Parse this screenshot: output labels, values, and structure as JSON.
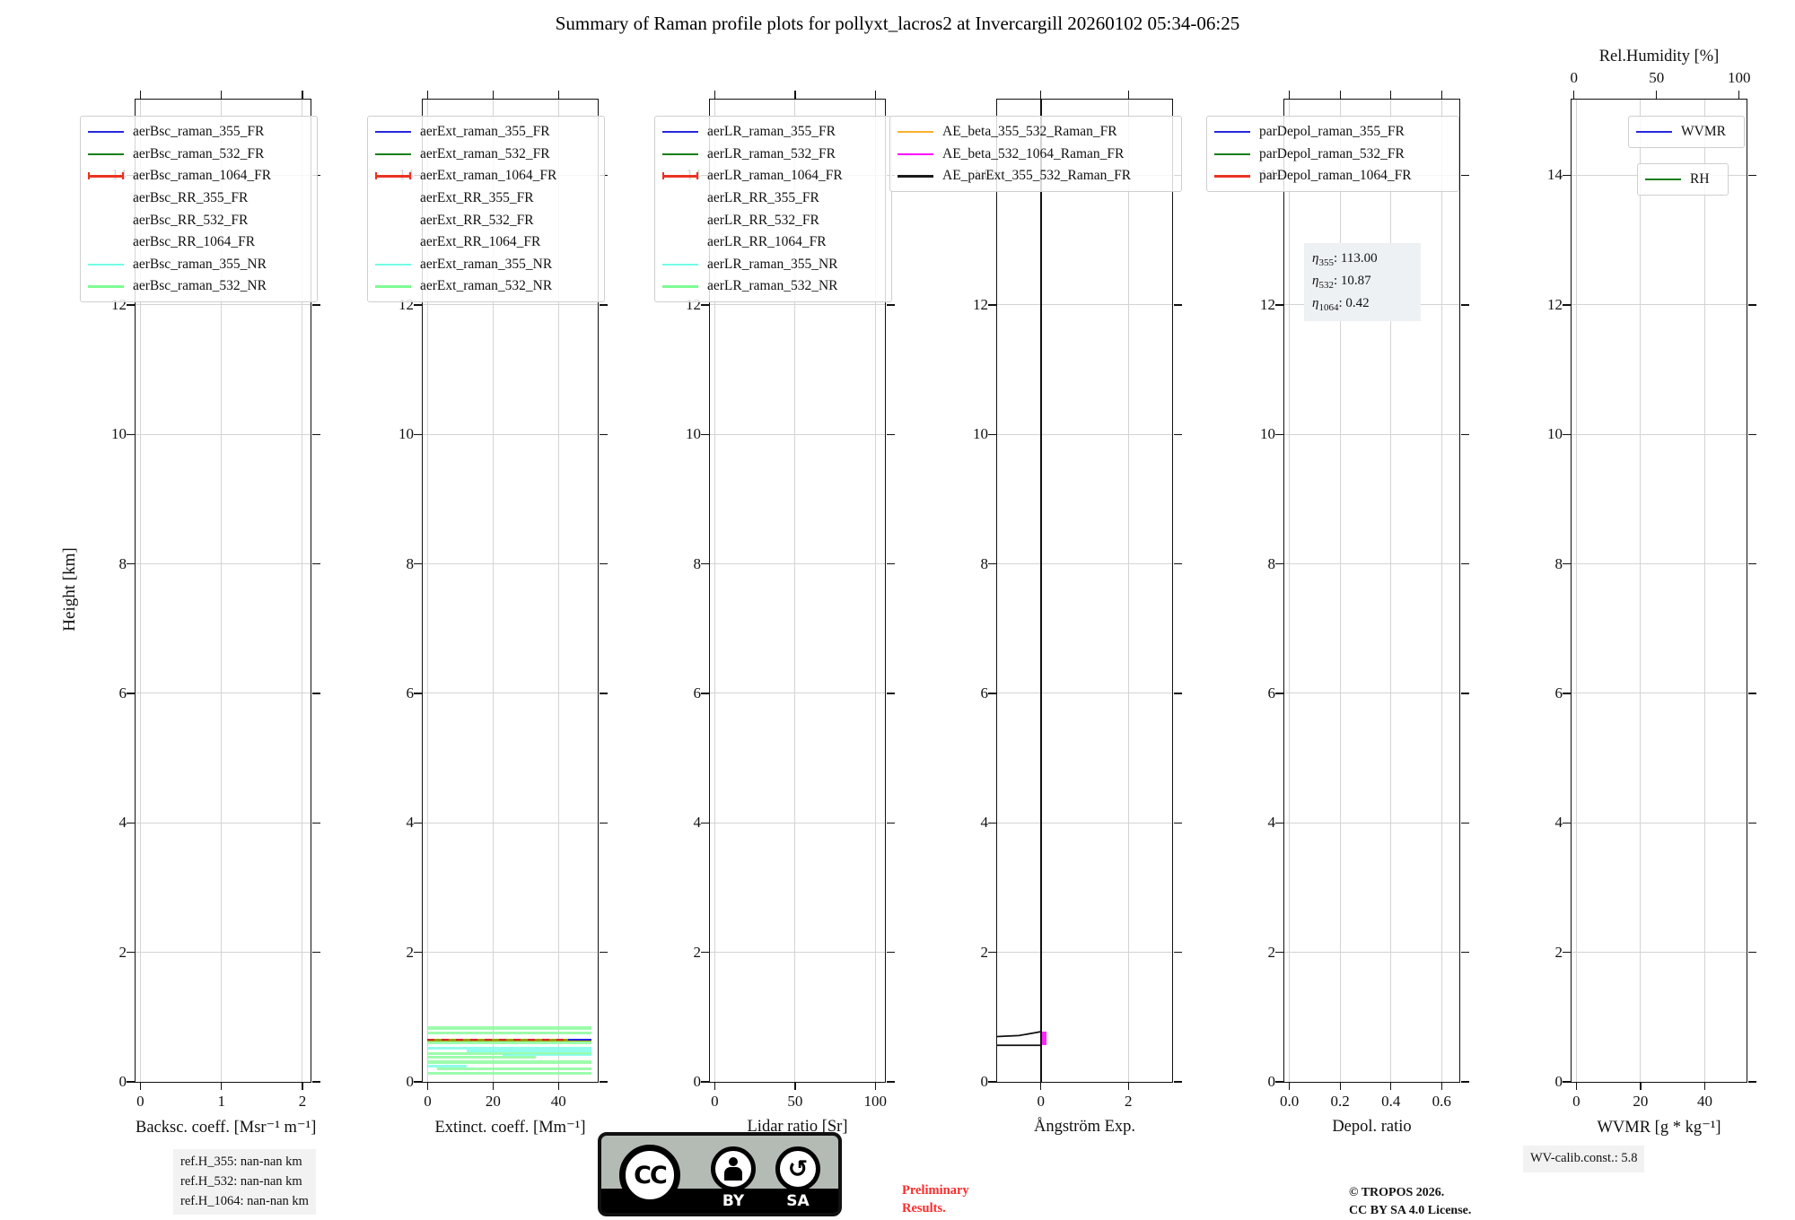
{
  "header": {
    "title": "Summary of Raman profile plots for pollyxt_lacros2 at Invercargill 20260102 05:34-06:25"
  },
  "ylabel": "Height [km]",
  "chart_data": [
    {
      "id": "backsc",
      "type": "line",
      "xlabel": "Backsc. coeff. [Msr⁻¹ m⁻¹]",
      "ylabel": "Height [km]",
      "xlim": [
        -0.06,
        2.1
      ],
      "ylim": [
        0,
        15.17
      ],
      "xticks": [
        0,
        1,
        2
      ],
      "xtick_labels": [
        "0",
        "1",
        "2"
      ],
      "yticks": [
        0,
        2,
        4,
        6,
        8,
        10,
        12,
        14
      ],
      "ytick_labels": [
        "0",
        "2",
        "4",
        "6",
        "8",
        "10",
        "12",
        "14"
      ],
      "grid": true,
      "legend": [
        {
          "label": "aerBsc_raman_355_FR",
          "color": "#2727dd",
          "style": "solid"
        },
        {
          "label": "aerBsc_raman_532_FR",
          "color": "#157f15",
          "style": "solid"
        },
        {
          "label": "aerBsc_raman_1064_FR",
          "color": "#ea3323",
          "style": "solid",
          "handle": "errorbar"
        },
        {
          "label": "aerBsc_RR_355_FR",
          "color": "#800f80",
          "style": "dashed"
        },
        {
          "label": "aerBsc_RR_532_FR",
          "color": "#9c9c00",
          "style": "dashed"
        },
        {
          "label": "aerBsc_RR_1064_FR",
          "color": "#ffa184",
          "style": "dashed"
        },
        {
          "label": "aerBsc_raman_355_NR",
          "color": "#72fce4",
          "style": "solid"
        },
        {
          "label": "aerBsc_raman_532_NR",
          "color": "#7dfc93",
          "style": "solid"
        }
      ],
      "series": []
    },
    {
      "id": "extinct",
      "type": "line",
      "xlabel": "Extinct. coeff. [Mm⁻¹]",
      "xlim": [
        -1.5,
        52
      ],
      "ylim": [
        0,
        15.17
      ],
      "xticks": [
        0,
        20,
        40
      ],
      "xtick_labels": [
        "0",
        "20",
        "40"
      ],
      "yticks": [
        0,
        2,
        4,
        6,
        8,
        10,
        12,
        14
      ],
      "ytick_labels": [
        "0",
        "2",
        "4",
        "6",
        "8",
        "10",
        "12",
        "14"
      ],
      "grid": true,
      "legend": [
        {
          "label": "aerExt_raman_355_FR",
          "color": "#2727dd",
          "style": "solid"
        },
        {
          "label": "aerExt_raman_532_FR",
          "color": "#157f15",
          "style": "solid"
        },
        {
          "label": "aerExt_raman_1064_FR",
          "color": "#ea3323",
          "style": "solid",
          "handle": "errorbar"
        },
        {
          "label": "aerExt_RR_355_FR",
          "color": "#800f80",
          "style": "dashed"
        },
        {
          "label": "aerExt_RR_532_FR",
          "color": "#9c9c00",
          "style": "dashed"
        },
        {
          "label": "aerExt_RR_1064_FR",
          "color": "#ffa184",
          "style": "dashed"
        },
        {
          "label": "aerExt_raman_355_NR",
          "color": "#72fce4",
          "style": "solid"
        },
        {
          "label": "aerExt_raman_532_NR",
          "color": "#7dfc93",
          "style": "solid"
        }
      ],
      "series": [
        {
          "type": "band",
          "x0": 0,
          "x1": 50,
          "y0": 0.8,
          "y1": 0.86,
          "color": "#8cfc9e"
        },
        {
          "type": "band",
          "x0": 0,
          "x1": 50,
          "y0": 0.73,
          "y1": 0.775,
          "color": "#8cfc9e"
        },
        {
          "type": "hline",
          "y": 0.65,
          "x0": 0,
          "x1": 50,
          "color": "#9c9c00",
          "lw": 3,
          "overlay": "#d42a2a"
        },
        {
          "type": "hline",
          "y": 0.655,
          "x0": 43,
          "x1": 50,
          "color": "#2727dd",
          "lw": 2
        },
        {
          "type": "band",
          "x0": 0,
          "x1": 50,
          "y0": 0.585,
          "y1": 0.625,
          "color": "#8cfc9e"
        },
        {
          "type": "band",
          "x0": 0,
          "x1": 50,
          "y0": 0.5,
          "y1": 0.545,
          "color": "#7efce8"
        },
        {
          "type": "band",
          "x0": 12,
          "x1": 50,
          "y0": 0.46,
          "y1": 0.5,
          "color": "#7efce8"
        },
        {
          "type": "band",
          "x0": 0,
          "x1": 50,
          "y0": 0.42,
          "y1": 0.455,
          "color": "#8cfc9e"
        },
        {
          "type": "band",
          "x0": 23,
          "x1": 50,
          "y0": 0.4,
          "y1": 0.435,
          "color": "#7efce8"
        },
        {
          "type": "band",
          "x0": 0,
          "x1": 33,
          "y0": 0.365,
          "y1": 0.395,
          "color": "#8cfc9e"
        },
        {
          "type": "band",
          "x0": 0,
          "x1": 50,
          "y0": 0.28,
          "y1": 0.33,
          "color": "#8cfc9e"
        },
        {
          "type": "band",
          "x0": 0,
          "x1": 12,
          "y0": 0.225,
          "y1": 0.26,
          "color": "#7efce8"
        },
        {
          "type": "band",
          "x0": 3,
          "x1": 50,
          "y0": 0.175,
          "y1": 0.215,
          "color": "#8cfc9e"
        },
        {
          "type": "band",
          "x0": 0,
          "x1": 50,
          "y0": 0.115,
          "y1": 0.15,
          "color": "#8cfc9e"
        }
      ]
    },
    {
      "id": "lidar-ratio",
      "type": "line",
      "xlabel": "Lidar ratio [Sr]",
      "xlim": [
        -3,
        106
      ],
      "ylim": [
        0,
        15.17
      ],
      "xticks": [
        0,
        50,
        100
      ],
      "xtick_labels": [
        "0",
        "50",
        "100"
      ],
      "yticks": [
        0,
        2,
        4,
        6,
        8,
        10,
        12,
        14
      ],
      "ytick_labels": [
        "0",
        "2",
        "4",
        "6",
        "8",
        "10",
        "12",
        "14"
      ],
      "grid": true,
      "legend": [
        {
          "label": "aerLR_raman_355_FR",
          "color": "#2727dd",
          "style": "solid"
        },
        {
          "label": "aerLR_raman_532_FR",
          "color": "#157f15",
          "style": "solid"
        },
        {
          "label": "aerLR_raman_1064_FR",
          "color": "#ea3323",
          "style": "solid",
          "handle": "errorbar"
        },
        {
          "label": "aerLR_RR_355_FR",
          "color": "#800f80",
          "style": "dashed"
        },
        {
          "label": "aerLR_RR_532_FR",
          "color": "#9c9c00",
          "style": "dashed"
        },
        {
          "label": "aerLR_RR_1064_FR",
          "color": "#ffa184",
          "style": "dashed"
        },
        {
          "label": "aerLR_raman_355_NR",
          "color": "#72fce4",
          "style": "solid"
        },
        {
          "label": "aerLR_raman_532_NR",
          "color": "#7dfc93",
          "style": "solid"
        }
      ],
      "series": []
    },
    {
      "id": "angstroem",
      "type": "line",
      "xlabel": "Ångström Exp.",
      "xlim": [
        -1,
        3
      ],
      "ylim": [
        0,
        15.17
      ],
      "xticks": [
        0,
        2
      ],
      "xtick_labels": [
        "0",
        "2"
      ],
      "yticks": [
        0,
        2,
        4,
        6,
        8,
        10,
        12,
        14
      ],
      "ytick_labels": [
        "0",
        "2",
        "4",
        "6",
        "8",
        "10",
        "12",
        "14"
      ],
      "grid": true,
      "legend": [
        {
          "label": "AE_beta_355_532_Raman_FR",
          "color": "#ffb02e",
          "style": "solid"
        },
        {
          "label": "AE_beta_532_1064_Raman_FR",
          "color": "#ff00ff",
          "style": "solid"
        },
        {
          "label": "AE_parExt_355_532_Raman_FR",
          "color": "#1a1a1a",
          "style": "solid"
        }
      ],
      "series": [
        {
          "type": "band",
          "x0": 0,
          "x1": 0.12,
          "y0": 0.565,
          "y1": 0.775,
          "color": "#ff00ff"
        },
        {
          "type": "vline",
          "x": 0,
          "y0": 0,
          "y1": 15.17,
          "color": "#111111",
          "lw": 2.2
        },
        {
          "type": "polyline",
          "color": "#111111",
          "lw": 1.8,
          "points": [
            [
              -1,
              0.7
            ],
            [
              -0.5,
              0.715
            ],
            [
              -0.12,
              0.76
            ],
            [
              0,
              0.775
            ]
          ]
        },
        {
          "type": "polyline",
          "color": "#111111",
          "lw": 1.8,
          "points": [
            [
              -1,
              0.565
            ],
            [
              0,
              0.565
            ]
          ]
        }
      ]
    },
    {
      "id": "depol",
      "type": "line",
      "xlabel": "Depol. ratio",
      "xlim": [
        -0.02,
        0.67
      ],
      "ylim": [
        0,
        15.17
      ],
      "xticks": [
        0,
        0.2,
        0.4,
        0.6
      ],
      "xtick_labels": [
        "0.0",
        "0.2",
        "0.4",
        "0.6"
      ],
      "yticks": [
        0,
        2,
        4,
        6,
        8,
        10,
        12,
        14
      ],
      "ytick_labels": [
        "0",
        "2",
        "4",
        "6",
        "8",
        "10",
        "12",
        "14"
      ],
      "grid": true,
      "legend": [
        {
          "label": "parDepol_raman_355_FR",
          "color": "#2727dd",
          "style": "solid"
        },
        {
          "label": "parDepol_raman_532_FR",
          "color": "#157f15",
          "style": "solid"
        },
        {
          "label": "parDepol_raman_1064_FR",
          "color": "#ea3323",
          "style": "solid"
        }
      ],
      "series": [],
      "eta": [
        {
          "sub": "355",
          "value": "113.00"
        },
        {
          "sub": "532",
          "value": "10.87"
        },
        {
          "sub": "1064",
          "value": "0.42"
        }
      ]
    },
    {
      "id": "wvmr",
      "type": "line",
      "xlabel": "WVMR [g * kg⁻¹]",
      "top_label": "Rel.Humidity [%]",
      "xlim": [
        -1.5,
        53
      ],
      "ylim": [
        0,
        15.17
      ],
      "xticks": [
        0,
        20,
        40
      ],
      "xtick_labels": [
        "0",
        "20",
        "40"
      ],
      "xlim_top": [
        -1.5,
        104.5
      ],
      "xticks_top": [
        0,
        50,
        100
      ],
      "xtick_top_labels": [
        "0",
        "50",
        "100"
      ],
      "yticks": [
        0,
        2,
        4,
        6,
        8,
        10,
        12,
        14
      ],
      "ytick_labels": [
        "0",
        "2",
        "4",
        "6",
        "8",
        "10",
        "12",
        "14"
      ],
      "grid": true,
      "legend": [
        {
          "label": "WVMR",
          "color": "#2727dd",
          "style": "solid"
        },
        {
          "label": "RH",
          "color": "#157f15",
          "style": "solid"
        }
      ],
      "series": []
    }
  ],
  "footer": {
    "ref_heights": [
      "ref.H_355: nan-nan km",
      "ref.H_532: nan-nan km",
      "ref.H_1064: nan-nan km"
    ],
    "cc_badge": {
      "cc": "CC",
      "by": "BY",
      "sa": "SA",
      "arrow": "↺"
    },
    "preliminary": [
      "Preliminary",
      "Results."
    ],
    "copyright": [
      "© TROPOS 2026.",
      "CC BY SA 4.0 License."
    ],
    "wv_calib": "WV-calib.const.: 5.8"
  },
  "colors": {
    "grid": "#d4d4d4",
    "axis": "#111111",
    "annotation_bg": "#eef1f4",
    "note_bg": "#f2f2f2",
    "preliminary_red": "#ff2b2b"
  }
}
